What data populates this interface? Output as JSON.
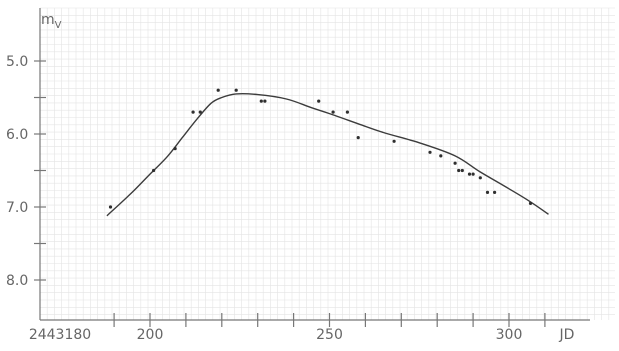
{
  "chart_data": {
    "type": "scatter",
    "title": "",
    "xlabel": "JD",
    "ylabel": "mV",
    "ylabel_main": "m",
    "ylabel_sub": "V",
    "x_origin_label": "2443180",
    "xlim": [
      2443180,
      2443312
    ],
    "ylim_inverted": [
      4.5,
      8.5
    ],
    "x_ticks": [
      2443190,
      2443200,
      2443210,
      2443220,
      2443230,
      2443240,
      2443250,
      2443260,
      2443270,
      2443280,
      2443290,
      2443300,
      2443310
    ],
    "x_tick_labels": [
      {
        "x": 2443200,
        "label": "200"
      },
      {
        "x": 2443250,
        "label": "250"
      },
      {
        "x": 2443300,
        "label": "300"
      }
    ],
    "y_ticks": [
      5.0,
      5.5,
      6.0,
      6.5,
      7.0,
      7.5,
      8.0
    ],
    "y_tick_labels": [
      {
        "y": 5.0,
        "label": "5.0"
      },
      {
        "y": 6.0,
        "label": "6.0"
      },
      {
        "y": 7.0,
        "label": "7.0"
      },
      {
        "y": 8.0,
        "label": "8.0"
      }
    ],
    "grid": true,
    "points": [
      {
        "x": 2443189,
        "y": 7.0
      },
      {
        "x": 2443201,
        "y": 6.5
      },
      {
        "x": 2443207,
        "y": 6.2
      },
      {
        "x": 2443212,
        "y": 5.7
      },
      {
        "x": 2443214,
        "y": 5.7
      },
      {
        "x": 2443219,
        "y": 5.4
      },
      {
        "x": 2443224,
        "y": 5.4
      },
      {
        "x": 2443231,
        "y": 5.55
      },
      {
        "x": 2443232,
        "y": 5.55
      },
      {
        "x": 2443247,
        "y": 5.55
      },
      {
        "x": 2443251,
        "y": 5.7
      },
      {
        "x": 2443255,
        "y": 5.7
      },
      {
        "x": 2443258,
        "y": 6.05
      },
      {
        "x": 2443268,
        "y": 6.1
      },
      {
        "x": 2443278,
        "y": 6.25
      },
      {
        "x": 2443281,
        "y": 6.3
      },
      {
        "x": 2443285,
        "y": 6.4
      },
      {
        "x": 2443286,
        "y": 6.5
      },
      {
        "x": 2443287,
        "y": 6.5
      },
      {
        "x": 2443289,
        "y": 6.55
      },
      {
        "x": 2443290,
        "y": 6.55
      },
      {
        "x": 2443292,
        "y": 6.6
      },
      {
        "x": 2443294,
        "y": 6.8
      },
      {
        "x": 2443296,
        "y": 6.8
      },
      {
        "x": 2443306,
        "y": 6.95
      }
    ],
    "curve": [
      {
        "x": 2443188,
        "y": 7.12
      },
      {
        "x": 2443195,
        "y": 6.8
      },
      {
        "x": 2443200,
        "y": 6.55
      },
      {
        "x": 2443205,
        "y": 6.3
      },
      {
        "x": 2443209,
        "y": 6.05
      },
      {
        "x": 2443213,
        "y": 5.8
      },
      {
        "x": 2443217,
        "y": 5.58
      },
      {
        "x": 2443220,
        "y": 5.5
      },
      {
        "x": 2443224,
        "y": 5.45
      },
      {
        "x": 2443230,
        "y": 5.46
      },
      {
        "x": 2443238,
        "y": 5.52
      },
      {
        "x": 2443245,
        "y": 5.64
      },
      {
        "x": 2443250,
        "y": 5.72
      },
      {
        "x": 2443258,
        "y": 5.86
      },
      {
        "x": 2443265,
        "y": 5.98
      },
      {
        "x": 2443275,
        "y": 6.12
      },
      {
        "x": 2443285,
        "y": 6.3
      },
      {
        "x": 2443292,
        "y": 6.52
      },
      {
        "x": 2443300,
        "y": 6.75
      },
      {
        "x": 2443306,
        "y": 6.93
      },
      {
        "x": 2443311,
        "y": 7.1
      }
    ],
    "colors": {
      "background": "#ffffff",
      "grid": "#e4e4e4",
      "axis": "#777777",
      "curve": "#3c3c3c",
      "points": "#2f2f2f",
      "text": "#666666"
    }
  }
}
